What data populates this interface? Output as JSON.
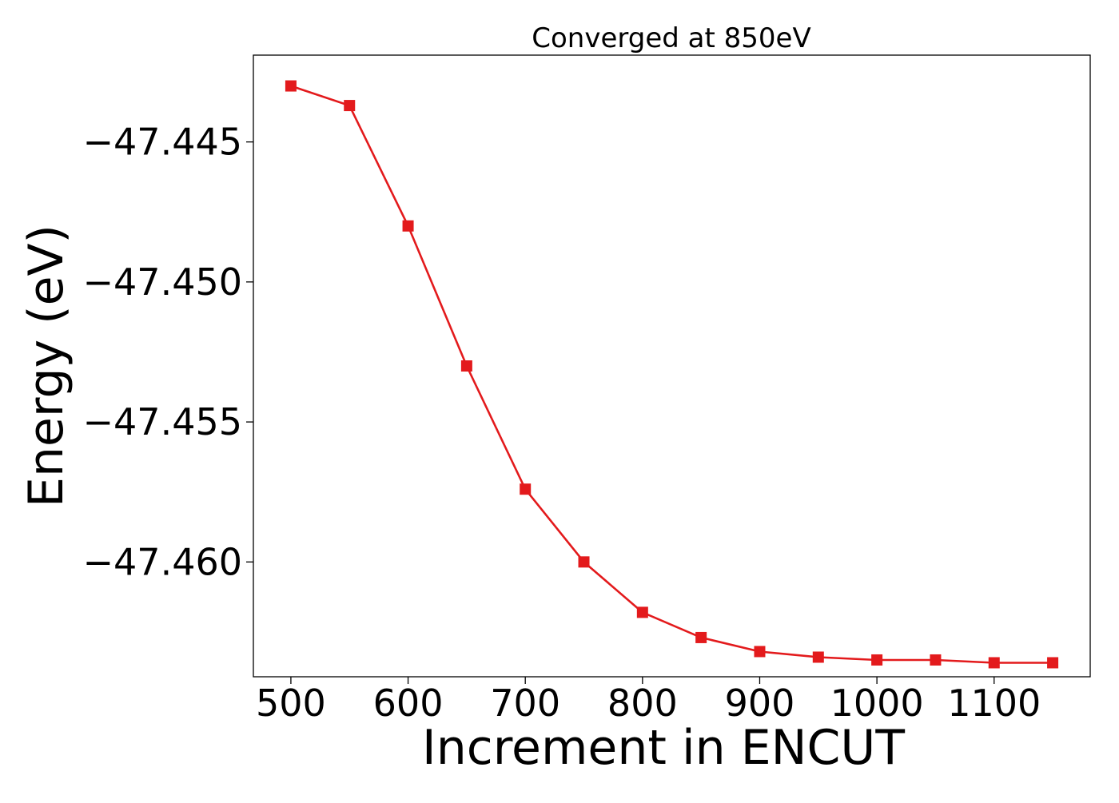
{
  "chart_data": {
    "type": "line",
    "title": "Converged at 850eV",
    "xlabel": "Increment in ENCUT",
    "ylabel": "Energy (eV)",
    "x": [
      500,
      550,
      600,
      650,
      700,
      750,
      800,
      850,
      900,
      950,
      1000,
      1050,
      1100,
      1150
    ],
    "series": [
      {
        "values": [
          -47.443,
          -47.4437,
          -47.448,
          -47.453,
          -47.4574,
          -47.46,
          -47.4618,
          -47.4627,
          -47.4632,
          -47.4634,
          -47.4635,
          -47.4635,
          -47.4636,
          -47.4636
        ],
        "color": "#e31a1c",
        "marker": "square"
      }
    ],
    "xticks": [
      500,
      600,
      700,
      800,
      900,
      1000,
      1100
    ],
    "xtick_labels": [
      "500",
      "600",
      "700",
      "800",
      "900",
      "1000",
      "1100"
    ],
    "yticks": [
      -47.445,
      -47.45,
      -47.455,
      -47.46
    ],
    "ytick_labels": [
      "−47.445",
      "−47.450",
      "−47.455",
      "−47.460"
    ],
    "xlim": [
      468,
      1182
    ],
    "ylim": [
      -47.4641,
      -47.4419
    ],
    "grid": false,
    "legend": "none"
  }
}
